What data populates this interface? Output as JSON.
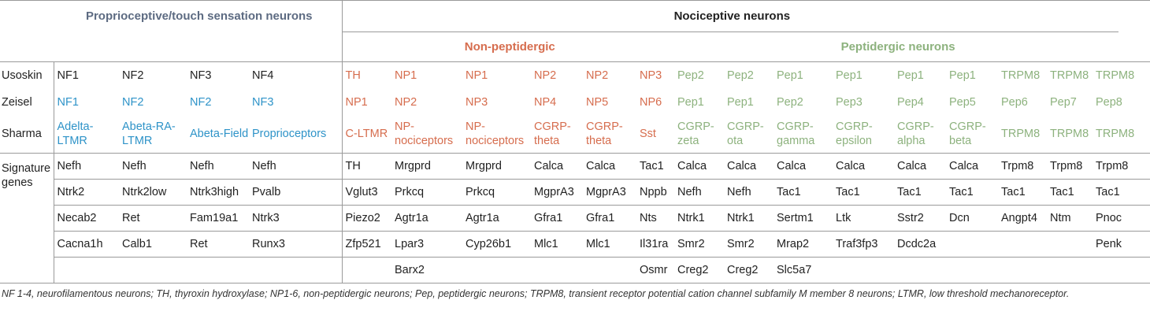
{
  "header": {
    "proprioceptive_title": "Proprioceptive/touch sensation neurons",
    "nociceptive_title": "Nociceptive neurons",
    "non_peptidergic_title": "Non-peptidergic",
    "peptidergic_title": "Peptidergic neurons"
  },
  "rows": {
    "usoskin": {
      "label": "Usoskin",
      "cells": [
        "NF1",
        "NF2",
        "NF3",
        "NF4",
        "TH",
        "NP1",
        "NP1",
        "NP2",
        "NP2",
        "NP3",
        "Pep2",
        "Pep2",
        "Pep1",
        "Pep1",
        "Pep1",
        "Pep1",
        "TRPM8",
        "TRPM8",
        "TRPM8"
      ]
    },
    "zeisel": {
      "label": "Zeisel",
      "cells": [
        "NF1",
        "NF2",
        "NF2",
        "NF3",
        "NP1",
        "NP2",
        "NP3",
        "NP4",
        "NP5",
        "NP6",
        "Pep1",
        "Pep1",
        "Pep2",
        "Pep3",
        "Pep4",
        "Pep5",
        "Pep6",
        "Pep7",
        "Pep8"
      ]
    },
    "sharma": {
      "label": "Sharma",
      "cells": [
        "Adelta-LTMR",
        "Abeta-RA-LTMR",
        "Abeta-Field",
        "Proprioceptors",
        "C-LTMR",
        "NP-nociceptors",
        "NP-nociceptors",
        "CGRP-theta",
        "CGRP-theta",
        "Sst",
        "CGRP-zeta",
        "CGRP-ota",
        "CGRP-gamma",
        "CGRP-epsilon",
        "CGRP-alpha",
        "CGRP-beta",
        "TRPM8",
        "TRPM8",
        "TRPM8"
      ]
    },
    "signature": {
      "label": "Signature genes",
      "rows": [
        [
          "Nefh",
          "Nefh",
          "Nefh",
          "Nefh",
          "TH",
          "Mrgprd",
          "Mrgprd",
          "Calca",
          "Calca",
          "Tac1",
          "Calca",
          "Calca",
          "Calca",
          "Calca",
          "Calca",
          "Calca",
          "Trpm8",
          "Trpm8",
          "Trpm8"
        ],
        [
          "Ntrk2",
          "Ntrk2low",
          "Ntrk3high",
          "Pvalb",
          "Vglut3",
          "Prkcq",
          "Prkcq",
          "MgprA3",
          "MgprA3",
          "Nppb",
          "Nefh",
          "Nefh",
          "Tac1",
          "Tac1",
          "Tac1",
          "Tac1",
          "Tac1",
          "Tac1",
          "Tac1"
        ],
        [
          "Necab2",
          "Ret",
          "Fam19a1",
          "Ntrk3",
          "Piezo2",
          "Agtr1a",
          "Agtr1a",
          "Gfra1",
          "Gfra1",
          "Nts",
          "Ntrk1",
          "Ntrk1",
          "Sertm1",
          "Ltk",
          "Sstr2",
          "Dcn",
          "Angpt4",
          "Ntm",
          "Pnoc"
        ],
        [
          "Cacna1h",
          "Calb1",
          "Ret",
          "Runx3",
          "Zfp521",
          "Lpar3",
          "Cyp26b1",
          "Mlc1",
          "Mlc1",
          "Il31ra",
          "Smr2",
          "Smr2",
          "Mrap2",
          "Traf3fp3",
          "Dcdc2a",
          "",
          "",
          "",
          "Penk"
        ],
        [
          "",
          "",
          "",
          "",
          "",
          "Barx2",
          "",
          "",
          "",
          "Osmr",
          "Creg2",
          "Creg2",
          "Slc5a7",
          "",
          "",
          "",
          "",
          "",
          ""
        ]
      ]
    }
  },
  "colors": {
    "proprioceptive_header": "#5d6b82",
    "nf_blue": "#2e93c8",
    "non_peptidergic_orange": "#d66d4e",
    "peptidergic_green": "#8db27e",
    "border": "#9a9a9a"
  },
  "footnote": "NF 1-4, neurofilamentous neurons; TH, thyroxin hydroxylase; NP1-6, non-peptidergic neurons; Pep, peptidergic neurons; TRPM8, transient receptor potential cation channel subfamily M member 8 neurons; LTMR, low threshold mechanoreceptor."
}
